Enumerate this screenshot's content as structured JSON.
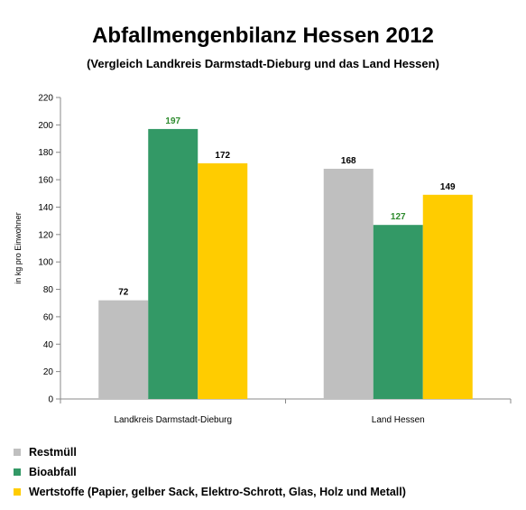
{
  "chart_data": {
    "type": "bar",
    "title": "Abfallmengenbilanz Hessen 2012",
    "subtitle": "(Vergleich Landkreis Darmstadt-Dieburg und das Land Hessen)",
    "ylabel": "in kg pro Einwohner",
    "xlabel": "",
    "ylim": [
      0,
      220
    ],
    "yticks": [
      0,
      20,
      40,
      60,
      80,
      100,
      120,
      140,
      160,
      180,
      200,
      220
    ],
    "categories": [
      "Landkreis Darmstadt-Dieburg",
      "Land Hessen"
    ],
    "series": [
      {
        "name": "Restmüll",
        "color": "#bfbfbf",
        "label_color": "#000000",
        "values": [
          72,
          168
        ]
      },
      {
        "name": "Bioabfall",
        "color": "#339966",
        "label_color": "#2e8b2e",
        "values": [
          197,
          127
        ]
      },
      {
        "name": "Wertstoffe (Papier, gelber Sack, Elektro-Schrott, Glas, Holz und Metall)",
        "color": "#ffcc00",
        "label_color": "#000000",
        "values": [
          172,
          149
        ]
      }
    ],
    "grid": false,
    "legend_position": "bottom-left"
  }
}
